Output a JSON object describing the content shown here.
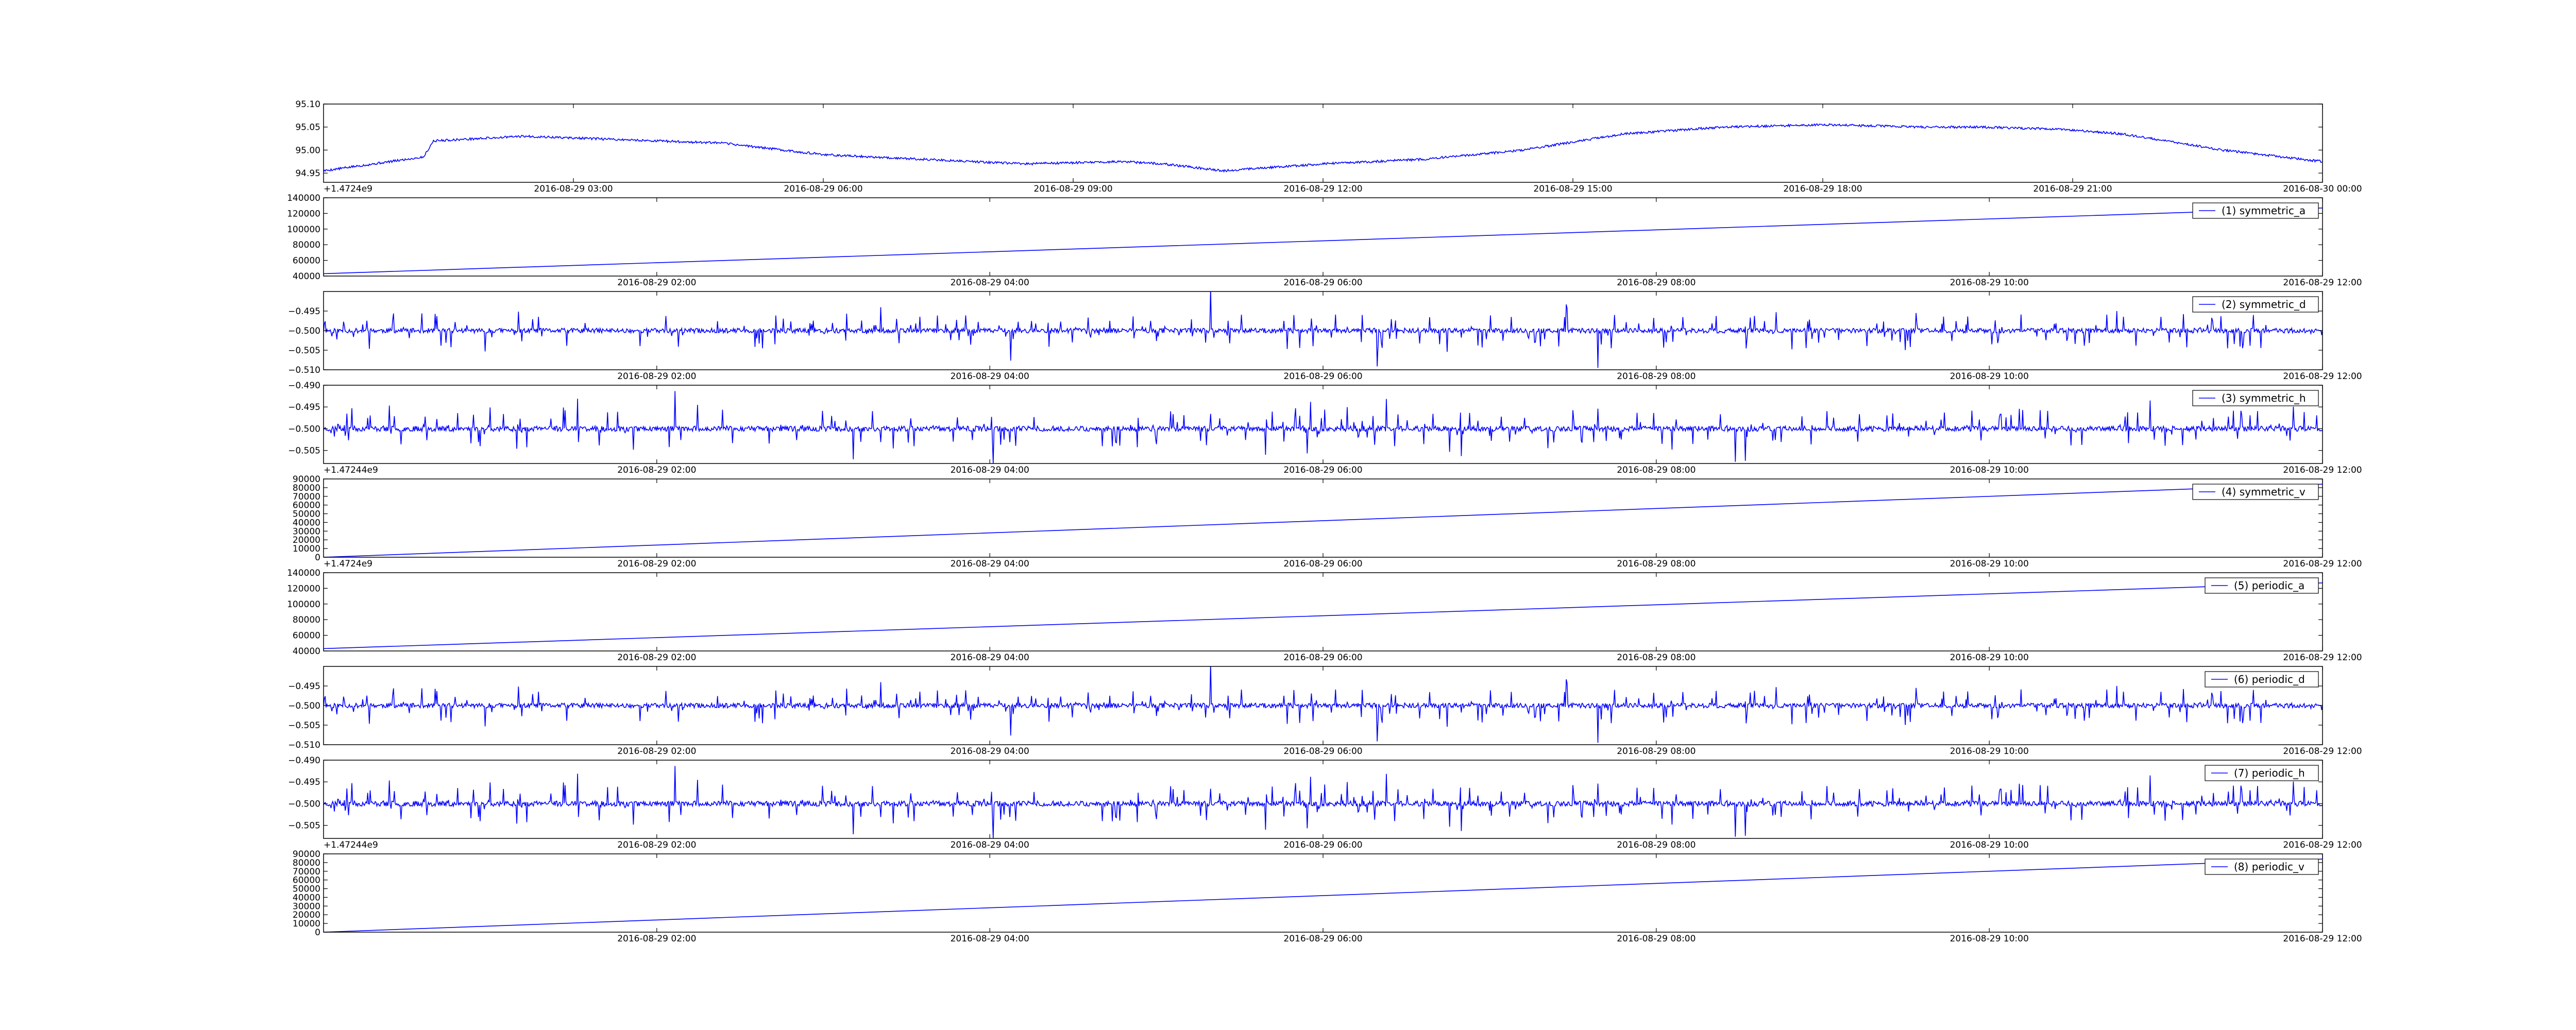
{
  "chart_data": [
    {
      "type": "line",
      "series": [
        {
          "name": "",
          "color": "#0000ff",
          "shape": "slow_wave",
          "noise": 0.0025,
          "x_frac": [
            0,
            0.05,
            0.055,
            0.1,
            0.2,
            0.25,
            0.35,
            0.4,
            0.42,
            0.45,
            0.5,
            0.55,
            0.6,
            0.65,
            0.7,
            0.75,
            0.8,
            0.83,
            0.87,
            0.9,
            0.95,
            1.0
          ],
          "values": [
            94.955,
            94.985,
            95.02,
            95.03,
            95.015,
            94.99,
            94.97,
            94.975,
            94.97,
            94.955,
            94.97,
            94.98,
            95.0,
            95.035,
            95.05,
            95.055,
            95.05,
            95.05,
            95.045,
            95.035,
            95.0,
            94.975
          ]
        }
      ],
      "ylim": [
        94.93,
        95.1
      ],
      "yticks": [
        "95.10",
        "95.05",
        "95.00",
        "94.95"
      ],
      "ytick_values": [
        95.1,
        95.05,
        95.0,
        94.95
      ],
      "xticks": [
        "2016-08-29 03:00",
        "2016-08-29 06:00",
        "2016-08-29 09:00",
        "2016-08-29 12:00",
        "2016-08-29 15:00",
        "2016-08-29 18:00",
        "2016-08-29 21:00",
        "2016-08-30 00:00"
      ],
      "xtick_frac": [
        0.125,
        0.25,
        0.375,
        0.5,
        0.625,
        0.75,
        0.875,
        1.0
      ],
      "offset_text": "+1.4724e9",
      "legend": ""
    },
    {
      "type": "line",
      "series": [
        {
          "name": "(1) symmetric_a",
          "color": "#0000ff",
          "shape": "linear",
          "values": [
            43000,
            127000
          ]
        }
      ],
      "ylim": [
        40000,
        140000
      ],
      "yticks": [
        "140000",
        "120000",
        "100000",
        "80000",
        "60000",
        "40000"
      ],
      "ytick_values": [
        140000,
        120000,
        100000,
        80000,
        60000,
        40000
      ],
      "xticks": [
        "2016-08-29 02:00",
        "2016-08-29 04:00",
        "2016-08-29 06:00",
        "2016-08-29 08:00",
        "2016-08-29 10:00",
        "2016-08-29 12:00"
      ],
      "xtick_frac": [
        0.1667,
        0.3333,
        0.5,
        0.6667,
        0.8333,
        1.0
      ],
      "offset_text": "",
      "legend": "upper right"
    },
    {
      "type": "line",
      "series": [
        {
          "name": "(2) symmetric_d",
          "color": "#0000ff",
          "shape": "noise",
          "center": -0.5,
          "amp": 0.0045,
          "seed": 11
        }
      ],
      "ylim": [
        -0.51,
        -0.49
      ],
      "yticks": [
        "−0.495",
        "−0.500",
        "−0.505",
        "−0.510"
      ],
      "ytick_values": [
        -0.495,
        -0.5,
        -0.505,
        -0.51
      ],
      "xticks": [
        "2016-08-29 02:00",
        "2016-08-29 04:00",
        "2016-08-29 06:00",
        "2016-08-29 08:00",
        "2016-08-29 10:00",
        "2016-08-29 12:00"
      ],
      "xtick_frac": [
        0.1667,
        0.3333,
        0.5,
        0.6667,
        0.8333,
        1.0
      ],
      "offset_text": "",
      "legend": "upper right"
    },
    {
      "type": "line",
      "series": [
        {
          "name": "(3) symmetric_h",
          "color": "#0000ff",
          "shape": "noise",
          "center": -0.5,
          "amp": 0.0045,
          "seed": 23
        }
      ],
      "ylim": [
        -0.508,
        -0.49
      ],
      "yticks": [
        "−0.490",
        "−0.495",
        "−0.500",
        "−0.505"
      ],
      "ytick_values": [
        -0.49,
        -0.495,
        -0.5,
        -0.505
      ],
      "xticks": [
        "2016-08-29 02:00",
        "2016-08-29 04:00",
        "2016-08-29 06:00",
        "2016-08-29 08:00",
        "2016-08-29 10:00",
        "2016-08-29 12:00"
      ],
      "xtick_frac": [
        0.1667,
        0.3333,
        0.5,
        0.6667,
        0.8333,
        1.0
      ],
      "offset_text": "+1.47244e9",
      "legend": "upper right"
    },
    {
      "type": "line",
      "series": [
        {
          "name": "(4) symmetric_v",
          "color": "#0000ff",
          "shape": "linear",
          "values": [
            0,
            84000
          ]
        }
      ],
      "ylim": [
        0,
        90000
      ],
      "yticks": [
        "90000",
        "80000",
        "70000",
        "60000",
        "50000",
        "40000",
        "30000",
        "20000",
        "10000",
        "0"
      ],
      "ytick_values": [
        90000,
        80000,
        70000,
        60000,
        50000,
        40000,
        30000,
        20000,
        10000,
        0
      ],
      "xticks": [
        "2016-08-29 02:00",
        "2016-08-29 04:00",
        "2016-08-29 06:00",
        "2016-08-29 08:00",
        "2016-08-29 10:00",
        "2016-08-29 12:00"
      ],
      "xtick_frac": [
        0.1667,
        0.3333,
        0.5,
        0.6667,
        0.8333,
        1.0
      ],
      "offset_text": "+1.4724e9",
      "legend": "upper right"
    },
    {
      "type": "line",
      "series": [
        {
          "name": "(5) periodic_a",
          "color": "#0000ff",
          "shape": "linear",
          "values": [
            43000,
            127000
          ]
        }
      ],
      "ylim": [
        40000,
        140000
      ],
      "yticks": [
        "140000",
        "120000",
        "100000",
        "80000",
        "60000",
        "40000"
      ],
      "ytick_values": [
        140000,
        120000,
        100000,
        80000,
        60000,
        40000
      ],
      "xticks": [
        "2016-08-29 02:00",
        "2016-08-29 04:00",
        "2016-08-29 06:00",
        "2016-08-29 08:00",
        "2016-08-29 10:00",
        "2016-08-29 12:00"
      ],
      "xtick_frac": [
        0.1667,
        0.3333,
        0.5,
        0.6667,
        0.8333,
        1.0
      ],
      "offset_text": "",
      "legend": "upper right"
    },
    {
      "type": "line",
      "series": [
        {
          "name": "(6) periodic_d",
          "color": "#0000ff",
          "shape": "noise",
          "center": -0.5,
          "amp": 0.0045,
          "seed": 11
        }
      ],
      "ylim": [
        -0.51,
        -0.49
      ],
      "yticks": [
        "−0.495",
        "−0.500",
        "−0.505",
        "−0.510"
      ],
      "ytick_values": [
        -0.495,
        -0.5,
        -0.505,
        -0.51
      ],
      "xticks": [
        "2016-08-29 02:00",
        "2016-08-29 04:00",
        "2016-08-29 06:00",
        "2016-08-29 08:00",
        "2016-08-29 10:00",
        "2016-08-29 12:00"
      ],
      "xtick_frac": [
        0.1667,
        0.3333,
        0.5,
        0.6667,
        0.8333,
        1.0
      ],
      "offset_text": "",
      "legend": "upper right"
    },
    {
      "type": "line",
      "series": [
        {
          "name": "(7) periodic_h",
          "color": "#0000ff",
          "shape": "noise",
          "center": -0.5,
          "amp": 0.0045,
          "seed": 23
        }
      ],
      "ylim": [
        -0.508,
        -0.49
      ],
      "yticks": [
        "−0.490",
        "−0.495",
        "−0.500",
        "−0.505"
      ],
      "ytick_values": [
        -0.49,
        -0.495,
        -0.5,
        -0.505
      ],
      "xticks": [
        "2016-08-29 02:00",
        "2016-08-29 04:00",
        "2016-08-29 06:00",
        "2016-08-29 08:00",
        "2016-08-29 10:00",
        "2016-08-29 12:00"
      ],
      "xtick_frac": [
        0.1667,
        0.3333,
        0.5,
        0.6667,
        0.8333,
        1.0
      ],
      "offset_text": "+1.47244e9",
      "legend": "upper right"
    },
    {
      "type": "line",
      "series": [
        {
          "name": "(8) periodic_v",
          "color": "#0000ff",
          "shape": "linear",
          "values": [
            0,
            84000
          ]
        }
      ],
      "ylim": [
        0,
        90000
      ],
      "yticks": [
        "90000",
        "80000",
        "70000",
        "60000",
        "50000",
        "40000",
        "30000",
        "20000",
        "10000",
        "0"
      ],
      "ytick_values": [
        90000,
        80000,
        70000,
        60000,
        50000,
        40000,
        30000,
        20000,
        10000,
        0
      ],
      "xticks": [
        "2016-08-29 02:00",
        "2016-08-29 04:00",
        "2016-08-29 06:00",
        "2016-08-29 08:00",
        "2016-08-29 10:00",
        "2016-08-29 12:00"
      ],
      "xtick_frac": [
        0.1667,
        0.3333,
        0.5,
        0.6667,
        0.8333,
        1.0
      ],
      "offset_text": "",
      "legend": "upper right"
    }
  ]
}
